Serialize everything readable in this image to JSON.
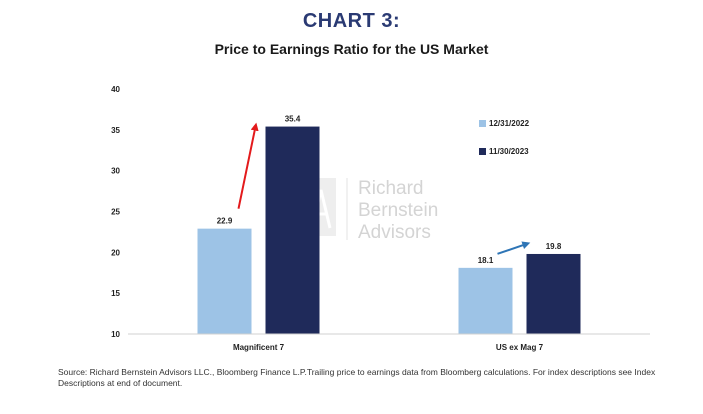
{
  "heading": "CHART 3:",
  "source": "Source:  Richard Bernstein Advisors LLC., Bloomberg Finance L.P.Trailing price to earnings data from Bloomberg calculations. For index descriptions see Index Descriptions at end of document.",
  "watermark": {
    "line1": "Richard",
    "line2": "Bernstein",
    "line3": "Advisors"
  },
  "colors": {
    "series1": "#9dc3e6",
    "series2": "#1f2a5a",
    "arrow_mag7": "#e31a1c",
    "arrow_usx": "#2e75b6"
  },
  "chart_data": {
    "type": "bar",
    "title": "Price to Earnings Ratio for the US Market",
    "categories": [
      "Magnificent 7",
      "US ex Mag 7"
    ],
    "series": [
      {
        "name": "12/31/2022",
        "values": [
          22.9,
          18.1
        ],
        "labels": [
          "22.9",
          "18.1"
        ]
      },
      {
        "name": "11/30/2023",
        "values": [
          35.4,
          19.8
        ],
        "labels": [
          "35.4",
          "19.8"
        ]
      }
    ],
    "ylim": [
      10,
      40
    ],
    "yticks": [
      "10",
      "15",
      "20",
      "25",
      "30",
      "35",
      "40"
    ],
    "legend_position": "right",
    "grid": false
  }
}
